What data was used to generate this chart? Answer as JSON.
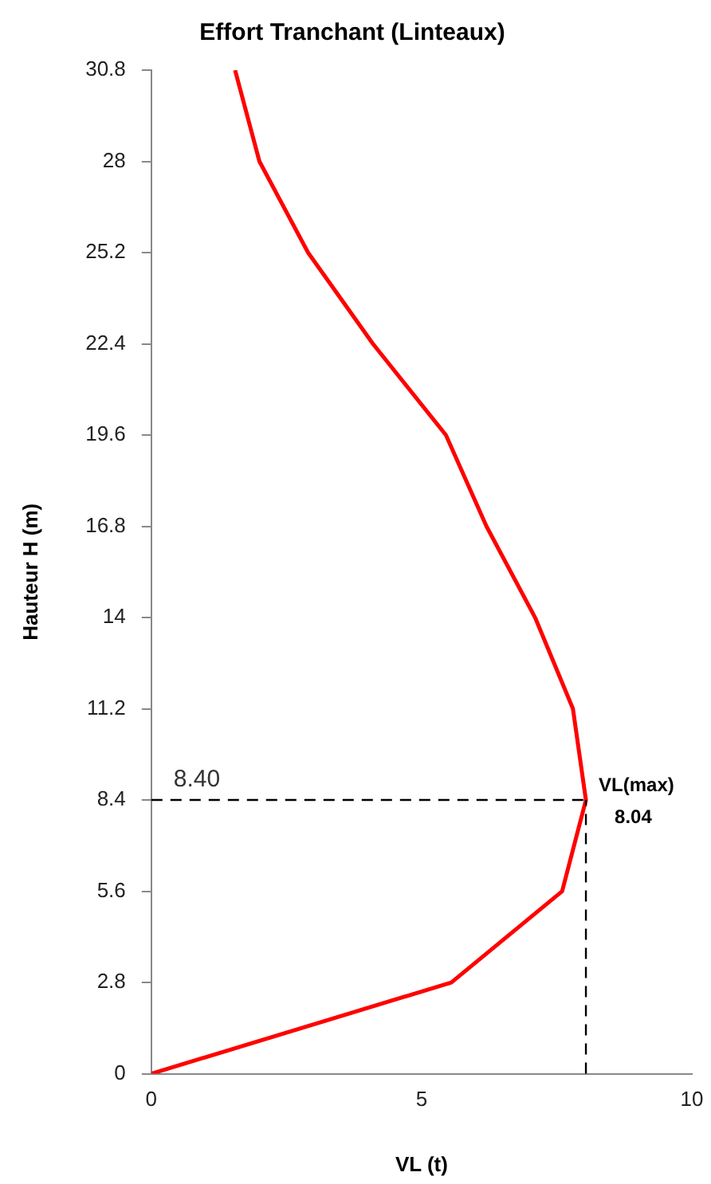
{
  "chart_data": {
    "type": "line",
    "title": "Effort Tranchant (Linteaux)",
    "xlabel": "VL (t)",
    "ylabel": "Hauteur H (m)",
    "x": [
      0,
      5.55,
      7.6,
      8.04,
      7.8,
      7.1,
      6.2,
      5.45,
      4.1,
      2.9,
      2.0,
      1.55
    ],
    "series": [
      {
        "color": "#ff0000",
        "values": [
          0,
          2.8,
          5.6,
          8.4,
          11.2,
          14,
          16.8,
          19.6,
          22.4,
          25.2,
          28,
          30.8
        ]
      }
    ],
    "xlim": [
      0,
      10
    ],
    "xticks": [
      0,
      5,
      10
    ],
    "ylim": [
      0,
      30.8
    ],
    "yticks": [
      0,
      2.8,
      5.6,
      8.4,
      11.2,
      14,
      16.8,
      19.6,
      22.4,
      25.2,
      28,
      30.8
    ],
    "grid": false,
    "legend": false,
    "marker": "none",
    "line_style": "solid",
    "ref_lines": [
      {
        "axis": "y",
        "value": 8.4,
        "label": "8.40",
        "line_style": "dashed",
        "color": "#000000"
      },
      {
        "axis": "x",
        "value": 8.04,
        "label": "VL(max)\n8.04",
        "line_style": "dashed",
        "color": "#000000"
      }
    ]
  }
}
